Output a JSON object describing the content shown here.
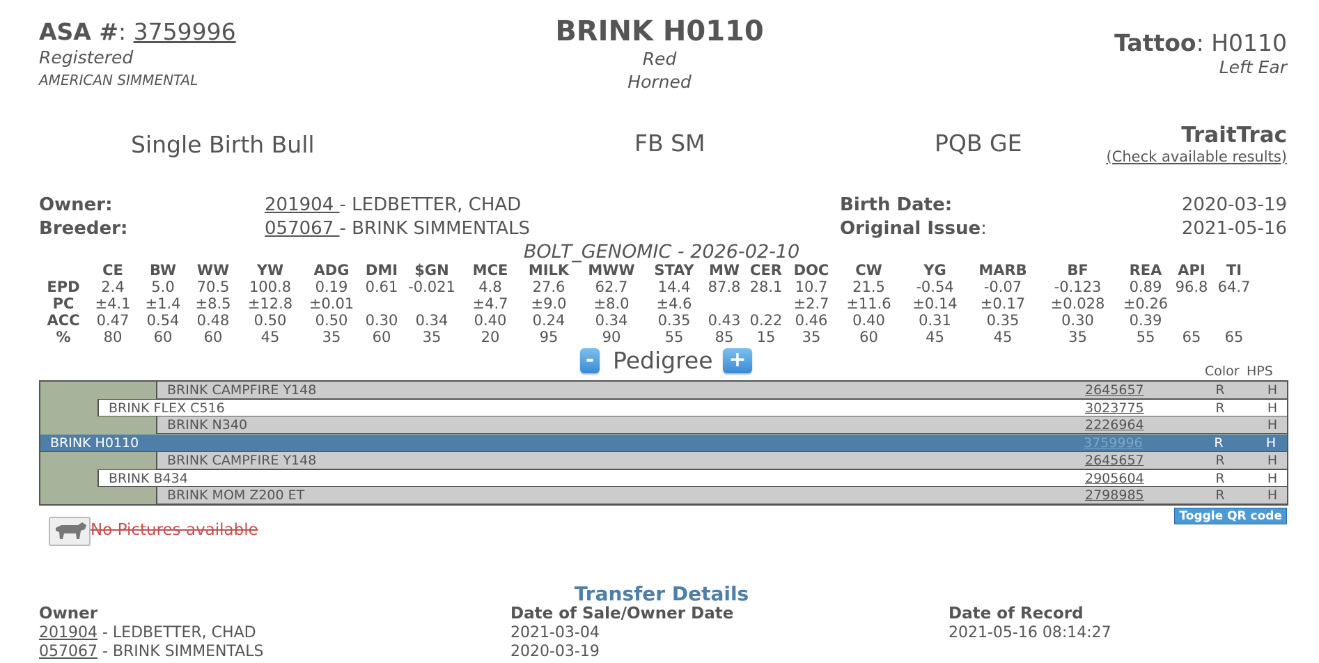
{
  "header": {
    "asa_label": "ASA #",
    "asa_number": "3759996",
    "status": "Registered",
    "association": "AMERICAN SIMMENTAL",
    "animal_name": "BRINK H0110",
    "color": "Red",
    "horned": "Horned",
    "tattoo_label": "Tattoo",
    "tattoo_value": "H0110",
    "tattoo_location": "Left Ear"
  },
  "summary": {
    "birth_type": "Single Birth Bull",
    "breed_code": "FB SM",
    "registration_code": "PQB GE",
    "traittrac_title": "TraitTrac",
    "traittrac_link": "(Check available results)"
  },
  "info": {
    "owner_label": "Owner:",
    "owner_id": "201904 ",
    "owner_name": " - LEDBETTER, CHAD",
    "breeder_label": "Breeder:",
    "breeder_id": "057067 ",
    "breeder_name": " - BRINK SIMMENTALS",
    "birth_date_label": "Birth Date:",
    "birth_date": "2020-03-19",
    "original_issue_label": "Original Issue",
    "original_issue": "2021-05-16"
  },
  "epd": {
    "title": "BOLT_GENOMIC - 2026-02-10",
    "columns": [
      "CE",
      "BW",
      "WW",
      "YW",
      "ADG",
      "DMI",
      "$GN",
      "MCE",
      "MILK",
      "MWW",
      "STAY",
      "MW",
      "CER",
      "DOC",
      "CW",
      "YG",
      "MARB",
      "BF",
      "REA",
      "API",
      "TI"
    ],
    "rows": [
      {
        "label": "EPD",
        "values": [
          "2.4",
          "5.0",
          "70.5",
          "100.8",
          "0.19",
          "0.61",
          "-0.021",
          "4.8",
          "27.6",
          "62.7",
          "14.4",
          "87.8",
          "28.1",
          "10.7",
          "21.5",
          "-0.54",
          "-0.07",
          "-0.123",
          "0.89",
          "96.8",
          "64.7"
        ]
      },
      {
        "label": "PC",
        "values": [
          "±4.1",
          "±1.4",
          "±8.5",
          "±12.8",
          "±0.01",
          "",
          "",
          "±4.7",
          "±9.0",
          "±8.0",
          "±4.6",
          "",
          "",
          "±2.7",
          "±11.6",
          "±0.14",
          "±0.17",
          "±0.028",
          "±0.26",
          "",
          ""
        ]
      },
      {
        "label": "ACC",
        "values": [
          "0.47",
          "0.54",
          "0.48",
          "0.50",
          "0.50",
          "0.30",
          "0.34",
          "0.40",
          "0.24",
          "0.34",
          "0.35",
          "0.43",
          "0.22",
          "0.46",
          "0.40",
          "0.31",
          "0.35",
          "0.30",
          "0.39",
          "",
          ""
        ]
      },
      {
        "label": "%",
        "values": [
          "80",
          "60",
          "60",
          "45",
          "35",
          "60",
          "35",
          "20",
          "95",
          "90",
          "55",
          "85",
          "15",
          "35",
          "60",
          "45",
          "45",
          "35",
          "55",
          "65",
          "65"
        ]
      }
    ]
  },
  "pedigree": {
    "minus": "-",
    "plus": "+",
    "title": "Pedigree",
    "col_color": "Color",
    "col_hps": "HPS",
    "rows": [
      {
        "name": "BRINK CAMPFIRE Y148",
        "reg": "2645657",
        "color": "R",
        "hps": "H"
      },
      {
        "name": "BRINK FLEX C516",
        "reg": "3023775",
        "color": "R",
        "hps": "H"
      },
      {
        "name": "BRINK N340",
        "reg": "2226964",
        "color": "",
        "hps": "H"
      },
      {
        "name": "BRINK H0110",
        "reg": "3759996",
        "color": "R",
        "hps": "H"
      },
      {
        "name": "BRINK CAMPFIRE Y148",
        "reg": "2645657",
        "color": "R",
        "hps": "H"
      },
      {
        "name": "BRINK B434",
        "reg": "2905604",
        "color": "R",
        "hps": "H"
      },
      {
        "name": "BRINK MOM Z200 ET",
        "reg": "2798985",
        "color": "R",
        "hps": "H"
      }
    ],
    "qr_button": "Toggle QR code"
  },
  "pictures": {
    "no_pictures": "No Pictures available"
  },
  "transfer": {
    "title": "Transfer Details",
    "owner_header": "Owner",
    "date_header": "Date of Sale/Owner Date",
    "record_header": "Date of Record",
    "rows": [
      {
        "owner_id": "201904",
        "owner_name": " - LEDBETTER, CHAD",
        "date": "2021-03-04",
        "record": "2021-05-16 08:14:27"
      },
      {
        "owner_id": "057067",
        "owner_name": " - BRINK SIMMENTALS",
        "date": "2020-03-19",
        "record": ""
      }
    ]
  }
}
